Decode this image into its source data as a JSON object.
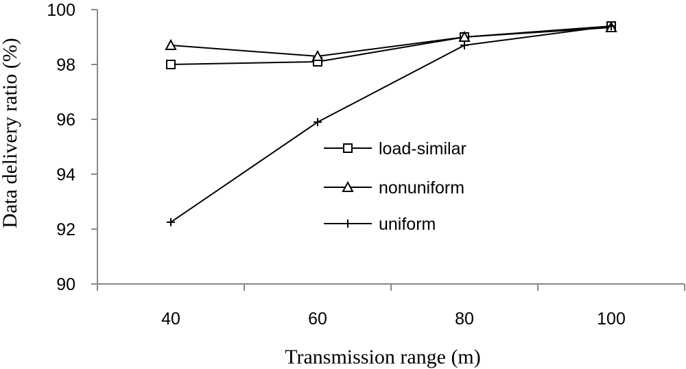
{
  "chart_data": {
    "type": "line",
    "title": "",
    "xlabel": "Transmission range (m)",
    "ylabel": "Data delivery ratio (%)",
    "categories": [
      "40",
      "60",
      "80",
      "100"
    ],
    "x": [
      40,
      60,
      80,
      100
    ],
    "ylim": [
      90,
      100
    ],
    "yticks": [
      "90",
      "92",
      "94",
      "96",
      "98",
      "100"
    ],
    "grid": false,
    "legend_position": "center-right",
    "series": [
      {
        "name": "load-similar",
        "marker": "square",
        "values": [
          98.0,
          98.1,
          99.0,
          99.4
        ]
      },
      {
        "name": "nonuniform",
        "marker": "triangle",
        "values": [
          98.7,
          98.3,
          99.0,
          99.35
        ]
      },
      {
        "name": "uniform",
        "marker": "plus",
        "values": [
          92.25,
          95.9,
          98.7,
          99.4
        ]
      }
    ]
  }
}
